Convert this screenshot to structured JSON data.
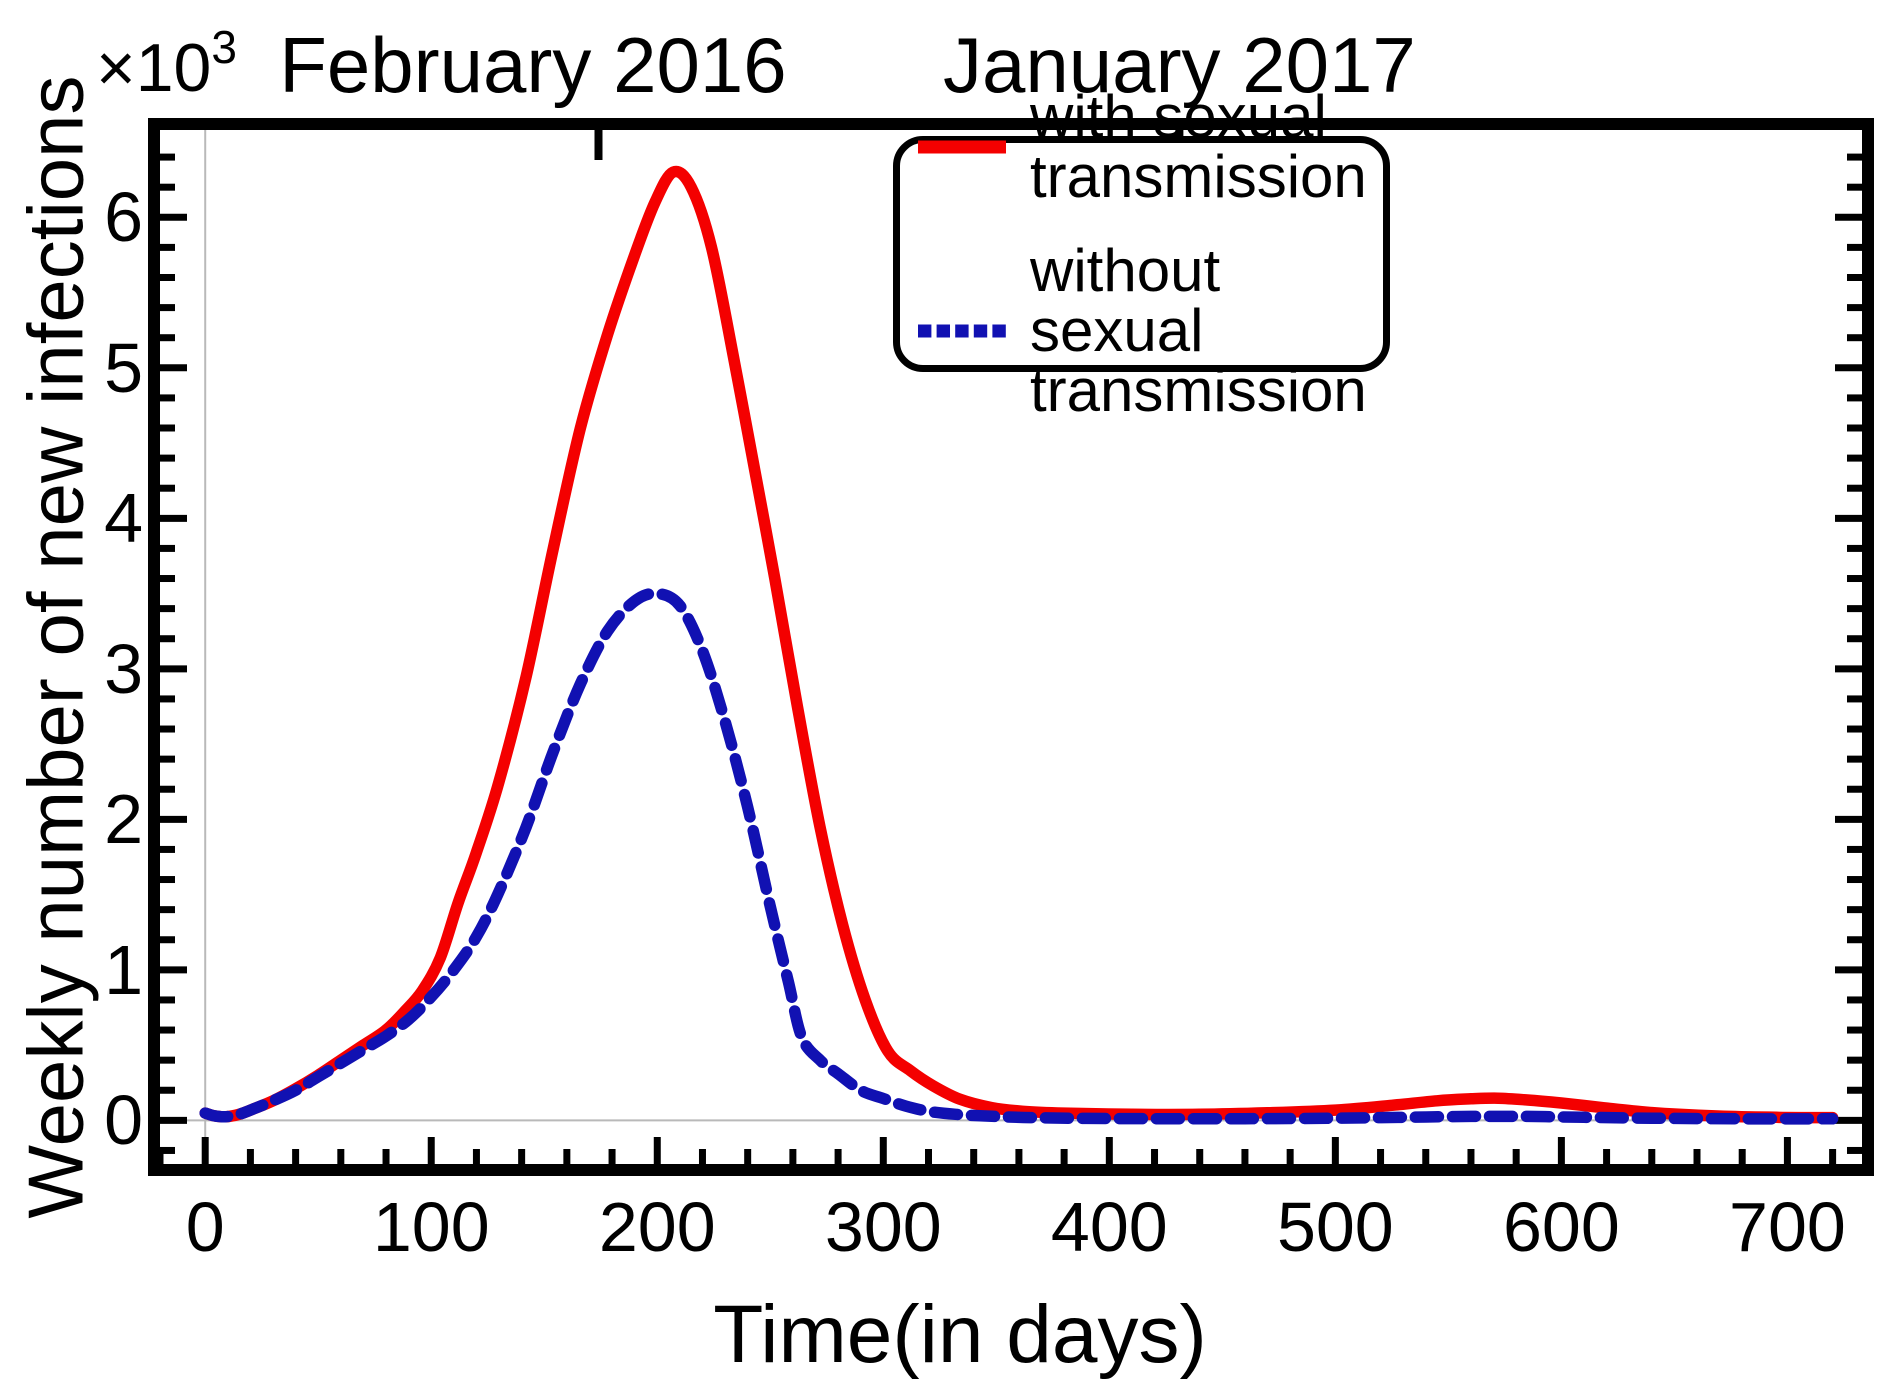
{
  "figure": {
    "y_multiplier_base": "×10",
    "y_multiplier_exponent": "3"
  },
  "chart_data": {
    "type": "line",
    "title": "",
    "xlabel": "Time(in days)",
    "ylabel": "Weekly number of new infections",
    "y_scale_label": "×10³",
    "y_values_unit": "thousands of new infections per week",
    "xlim": [
      -20,
      733
    ],
    "ylim": [
      -0.29,
      6.58
    ],
    "x_major_ticks": [
      0,
      100,
      200,
      300,
      400,
      500,
      600,
      700
    ],
    "x_minor_tick_step": 20,
    "y_major_ticks": [
      0,
      1,
      2,
      3,
      4,
      5,
      6
    ],
    "y_minor_tick_step": 0.2,
    "grid": "origin axes only (faint gray lines at x=0 and y=0)",
    "frame": true,
    "legend_position": "top-right-inside",
    "top_annotations": [
      {
        "label": "February 2016",
        "tick_day": 174,
        "label_day": 145
      },
      {
        "label": "January 2017",
        "tick_day": 431,
        "label_day": 431
      }
    ],
    "series": [
      {
        "name": "with sexual transmission",
        "color": "#f40000",
        "style": "solid",
        "peak": {
          "day": 207,
          "value": 6.3
        },
        "points": [
          [
            0,
            0.048
          ],
          [
            4,
            0.03
          ],
          [
            9,
            0.024
          ],
          [
            15,
            0.04
          ],
          [
            22,
            0.08
          ],
          [
            30,
            0.13
          ],
          [
            40,
            0.21
          ],
          [
            50,
            0.3
          ],
          [
            60,
            0.4
          ],
          [
            70,
            0.5
          ],
          [
            80,
            0.6
          ],
          [
            88,
            0.72
          ],
          [
            96,
            0.86
          ],
          [
            104,
            1.08
          ],
          [
            112,
            1.45
          ],
          [
            120,
            1.78
          ],
          [
            130,
            2.25
          ],
          [
            142,
            2.95
          ],
          [
            154,
            3.8
          ],
          [
            166,
            4.6
          ],
          [
            178,
            5.22
          ],
          [
            190,
            5.75
          ],
          [
            199,
            6.1
          ],
          [
            207,
            6.3
          ],
          [
            215,
            6.2
          ],
          [
            224,
            5.8
          ],
          [
            234,
            5.05
          ],
          [
            244,
            4.25
          ],
          [
            252,
            3.6
          ],
          [
            262,
            2.75
          ],
          [
            272,
            1.95
          ],
          [
            282,
            1.3
          ],
          [
            292,
            0.8
          ],
          [
            302,
            0.46
          ],
          [
            312,
            0.33
          ],
          [
            322,
            0.23
          ],
          [
            334,
            0.14
          ],
          [
            348,
            0.085
          ],
          [
            362,
            0.06
          ],
          [
            380,
            0.048
          ],
          [
            410,
            0.04
          ],
          [
            440,
            0.04
          ],
          [
            470,
            0.05
          ],
          [
            500,
            0.068
          ],
          [
            525,
            0.1
          ],
          [
            545,
            0.13
          ],
          [
            560,
            0.143
          ],
          [
            572,
            0.147
          ],
          [
            585,
            0.135
          ],
          [
            600,
            0.115
          ],
          [
            618,
            0.085
          ],
          [
            635,
            0.058
          ],
          [
            652,
            0.04
          ],
          [
            672,
            0.027
          ],
          [
            695,
            0.02
          ],
          [
            720,
            0.018
          ]
        ]
      },
      {
        "name": "without sexual transmission",
        "color": "#1111b2",
        "style": "dashed",
        "peak": {
          "day": 200,
          "value": 3.5
        },
        "points": [
          [
            0,
            0.048
          ],
          [
            4,
            0.03
          ],
          [
            9,
            0.024
          ],
          [
            15,
            0.04
          ],
          [
            22,
            0.08
          ],
          [
            30,
            0.13
          ],
          [
            40,
            0.2
          ],
          [
            50,
            0.29
          ],
          [
            60,
            0.38
          ],
          [
            70,
            0.47
          ],
          [
            80,
            0.56
          ],
          [
            90,
            0.67
          ],
          [
            100,
            0.82
          ],
          [
            110,
            1.0
          ],
          [
            120,
            1.22
          ],
          [
            130,
            1.52
          ],
          [
            142,
            1.95
          ],
          [
            154,
            2.45
          ],
          [
            166,
            2.9
          ],
          [
            178,
            3.25
          ],
          [
            190,
            3.45
          ],
          [
            200,
            3.5
          ],
          [
            210,
            3.42
          ],
          [
            220,
            3.12
          ],
          [
            230,
            2.65
          ],
          [
            240,
            2.08
          ],
          [
            250,
            1.42
          ],
          [
            258,
            0.92
          ],
          [
            264,
            0.55
          ],
          [
            272,
            0.4
          ],
          [
            280,
            0.31
          ],
          [
            290,
            0.2
          ],
          [
            300,
            0.145
          ],
          [
            310,
            0.095
          ],
          [
            320,
            0.06
          ],
          [
            332,
            0.04
          ],
          [
            348,
            0.027
          ],
          [
            365,
            0.018
          ],
          [
            390,
            0.013
          ],
          [
            420,
            0.011
          ],
          [
            460,
            0.011
          ],
          [
            500,
            0.014
          ],
          [
            530,
            0.02
          ],
          [
            560,
            0.026
          ],
          [
            585,
            0.026
          ],
          [
            610,
            0.02
          ],
          [
            640,
            0.014
          ],
          [
            680,
            0.01
          ],
          [
            720,
            0.01
          ]
        ]
      }
    ]
  }
}
